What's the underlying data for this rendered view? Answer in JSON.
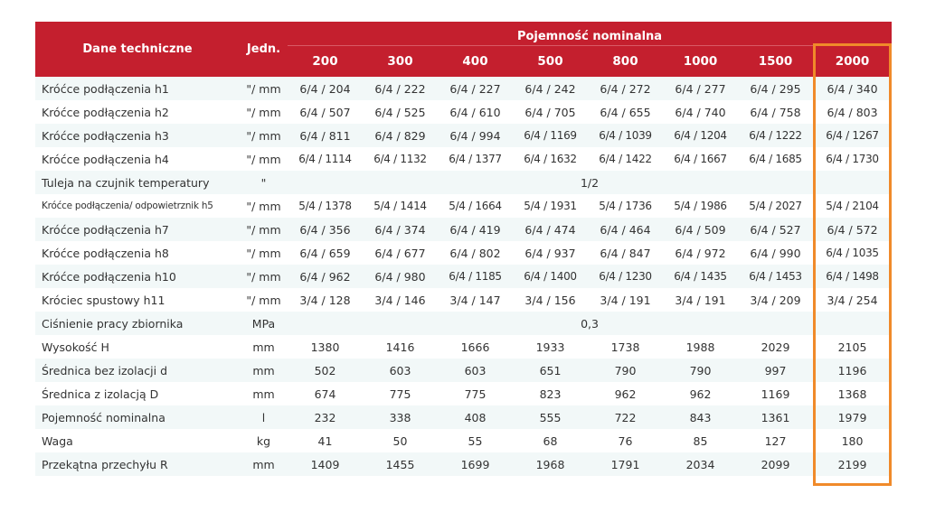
{
  "header": {
    "col_label": "Dane techniczne",
    "col_unit": "Jedn.",
    "group_label": "Pojemność nominalna",
    "capacities": [
      "200",
      "300",
      "400",
      "500",
      "800",
      "1000",
      "1500",
      "2000"
    ]
  },
  "rows": [
    {
      "label": "Króćce podłączenia h1",
      "unit": "\"/ mm",
      "values": [
        "6/4 / 204",
        "6/4 / 222",
        "6/4 / 227",
        "6/4 / 242",
        "6/4 / 272",
        "6/4 / 277",
        "6/4 / 295",
        "6/4 / 340"
      ]
    },
    {
      "label": "Króćce podłączenia h2",
      "unit": "\"/ mm",
      "values": [
        "6/4 / 507",
        "6/4 / 525",
        "6/4 / 610",
        "6/4 / 705",
        "6/4 / 655",
        "6/4 / 740",
        "6/4 / 758",
        "6/4 / 803"
      ]
    },
    {
      "label": "Króćce podłączenia h3",
      "unit": "\"/ mm",
      "values": [
        "6/4 / 811",
        "6/4 / 829",
        "6/4 / 994",
        "6/4 / 1169",
        "6/4 / 1039",
        "6/4 / 1204",
        "6/4 / 1222",
        "6/4 / 1267"
      ]
    },
    {
      "label": "Króćce podłączenia h4",
      "unit": "\"/ mm",
      "values": [
        "6/4 / 1114",
        "6/4 / 1132",
        "6/4 / 1377",
        "6/4 / 1632",
        "6/4 / 1422",
        "6/4 / 1667",
        "6/4 / 1685",
        "6/4 / 1730"
      ]
    },
    {
      "label": "Tuleja na czujnik temperatury",
      "unit": "\"",
      "span_value": "1/2"
    },
    {
      "label": "Króćce podłączenia/ odpowietrznik h5",
      "unit": "\"/ mm",
      "small": true,
      "values": [
        "5/4 / 1378",
        "5/4 / 1414",
        "5/4 / 1664",
        "5/4 / 1931",
        "5/4 / 1736",
        "5/4 / 1986",
        "5/4 / 2027",
        "5/4 / 2104"
      ]
    },
    {
      "label": "Króćce podłączenia h7",
      "unit": "\"/ mm",
      "values": [
        "6/4 / 356",
        "6/4 / 374",
        "6/4 / 419",
        "6/4 / 474",
        "6/4 / 464",
        "6/4 / 509",
        "6/4 / 527",
        "6/4 / 572"
      ]
    },
    {
      "label": "Króćce podłączenia h8",
      "unit": "\"/ mm",
      "values": [
        "6/4 / 659",
        "6/4 / 677",
        "6/4 / 802",
        "6/4 / 937",
        "6/4 / 847",
        "6/4 / 972",
        "6/4 / 990",
        "6/4 / 1035"
      ]
    },
    {
      "label": "Króćce podłączenia h10",
      "unit": "\"/ mm",
      "values": [
        "6/4 / 962",
        "6/4 / 980",
        "6/4 / 1185",
        "6/4 / 1400",
        "6/4 / 1230",
        "6/4 / 1435",
        "6/4 / 1453",
        "6/4 / 1498"
      ]
    },
    {
      "label": "Króciec spustowy h11",
      "unit": "\"/ mm",
      "values": [
        "3/4 / 128",
        "3/4 / 146",
        "3/4 / 147",
        "3/4 / 156",
        "3/4 / 191",
        "3/4 / 191",
        "3/4 / 209",
        "3/4 / 254"
      ]
    },
    {
      "label": "Ciśnienie pracy zbiornika",
      "unit": "MPa",
      "span_value": "0,3"
    },
    {
      "label": "Wysokość H",
      "unit": "mm",
      "values": [
        "1380",
        "1416",
        "1666",
        "1933",
        "1738",
        "1988",
        "2029",
        "2105"
      ]
    },
    {
      "label": "Średnica bez izolacji d",
      "unit": "mm",
      "values": [
        "502",
        "603",
        "603",
        "651",
        "790",
        "790",
        "997",
        "1196"
      ]
    },
    {
      "label": "Średnica z izolacją D",
      "unit": "mm",
      "values": [
        "674",
        "775",
        "775",
        "823",
        "962",
        "962",
        "1169",
        "1368"
      ]
    },
    {
      "label": "Pojemność nominalna",
      "unit": "l",
      "values": [
        "232",
        "338",
        "408",
        "555",
        "722",
        "843",
        "1361",
        "1979"
      ]
    },
    {
      "label": "Waga",
      "unit": "kg",
      "values": [
        "41",
        "50",
        "55",
        "68",
        "76",
        "85",
        "127",
        "180"
      ]
    },
    {
      "label": "Przekątna przechyłu R",
      "unit": "mm",
      "values": [
        "1409",
        "1455",
        "1699",
        "1968",
        "1791",
        "2034",
        "2099",
        "2199"
      ]
    }
  ],
  "colors": {
    "header_bg": "#c41f2e",
    "row_stripe": "#f2f8f8",
    "highlight": "#f08a2a"
  },
  "highlighted_column": "2000"
}
